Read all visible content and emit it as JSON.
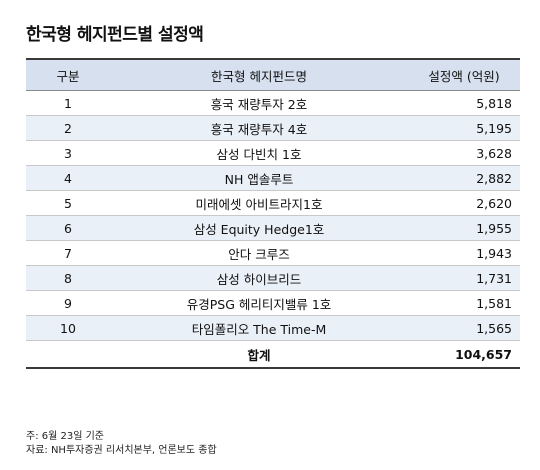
{
  "title": "한국형 헤지펀드별 설정액",
  "table": {
    "headers": [
      "구분",
      "한국형 헤지펀드명",
      "설정액 (억원)"
    ],
    "rows": [
      {
        "no": "1",
        "name": "흥국 재량투자 2호",
        "amount": "5,818"
      },
      {
        "no": "2",
        "name": "흥국 재량투자 4호",
        "amount": "5,195"
      },
      {
        "no": "3",
        "name": "삼성 다빈치 1호",
        "amount": "3,628"
      },
      {
        "no": "4",
        "name": "NH 앱솔루트",
        "amount": "2,882"
      },
      {
        "no": "5",
        "name": "미래에셋 아비트라지1호",
        "amount": "2,620"
      },
      {
        "no": "6",
        "name": "삼성 Equity Hedge1호",
        "amount": "1,955"
      },
      {
        "no": "7",
        "name": "안다 크루즈",
        "amount": "1,943"
      },
      {
        "no": "8",
        "name": "삼성 하이브리드",
        "amount": "1,731"
      },
      {
        "no": "9",
        "name": "유경PSG 헤리티지밸류 1호",
        "amount": "1,581"
      },
      {
        "no": "10",
        "name": "타임폴리오 The Time-M",
        "amount": "1,565"
      }
    ],
    "total": {
      "label": "합계",
      "amount": "104,657"
    }
  },
  "notes": [
    "주: 6월 23일 기준",
    "자료: NH투자증권 리서치본부, 언론보도 종합"
  ]
}
